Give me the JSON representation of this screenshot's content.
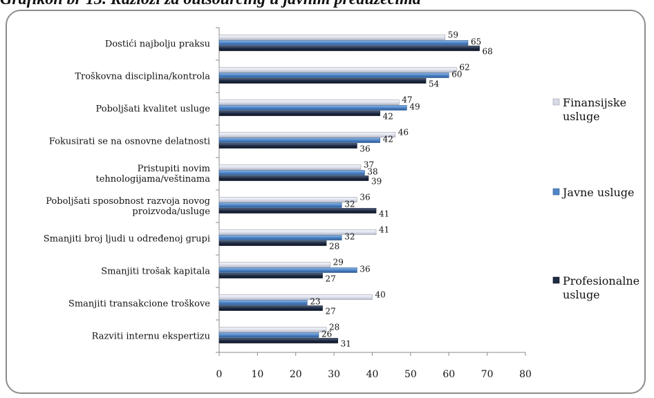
{
  "caption": "Grafikon br 13. Razlozi za outsourcing u javnim preduzećima",
  "colors": {
    "finansijske": "#e3e5ef",
    "javne": "#4f85c7",
    "profesionalne": "#1e2b43"
  },
  "chart_data": {
    "type": "bar",
    "orientation": "horizontal",
    "title": "",
    "xlabel": "",
    "ylabel": "",
    "xlim": [
      0,
      80
    ],
    "ticks": [
      0,
      10,
      20,
      30,
      40,
      50,
      60,
      70,
      80
    ],
    "legend_position": "right",
    "categories": [
      [
        "Dostići najbolju praksu"
      ],
      [
        "Troškovna disciplina/kontrola"
      ],
      [
        "Poboljšati kvalitet usluge"
      ],
      [
        "Fokusirati se na osnovne delatnosti"
      ],
      [
        "Pristupiti novim",
        "tehnologijama/veštinama"
      ],
      [
        "Poboljšati sposobnost razvoja novog",
        "proizvoda/usluge"
      ],
      [
        "Smanjiti broj ljudi u određenoj grupi"
      ],
      [
        "Smanjiti trošak kapitala"
      ],
      [
        "Smanjiti transakcione troškove"
      ],
      [
        "Razviti internu ekspertizu"
      ]
    ],
    "series": [
      {
        "name": "Finansijske usluge",
        "legend_lines": [
          "Finansijske",
          "usluge"
        ],
        "values": [
          59,
          62,
          47,
          46,
          37,
          36,
          41,
          29,
          40,
          28
        ]
      },
      {
        "name": "Javne usluge",
        "legend_lines": [
          "Javne usluge"
        ],
        "values": [
          65,
          60,
          49,
          42,
          38,
          32,
          32,
          36,
          23,
          26
        ]
      },
      {
        "name": "Profesionalne usluge",
        "legend_lines": [
          "Profesionalne",
          "usluge"
        ],
        "values": [
          68,
          54,
          42,
          36,
          39,
          41,
          28,
          27,
          27,
          31
        ]
      }
    ]
  }
}
